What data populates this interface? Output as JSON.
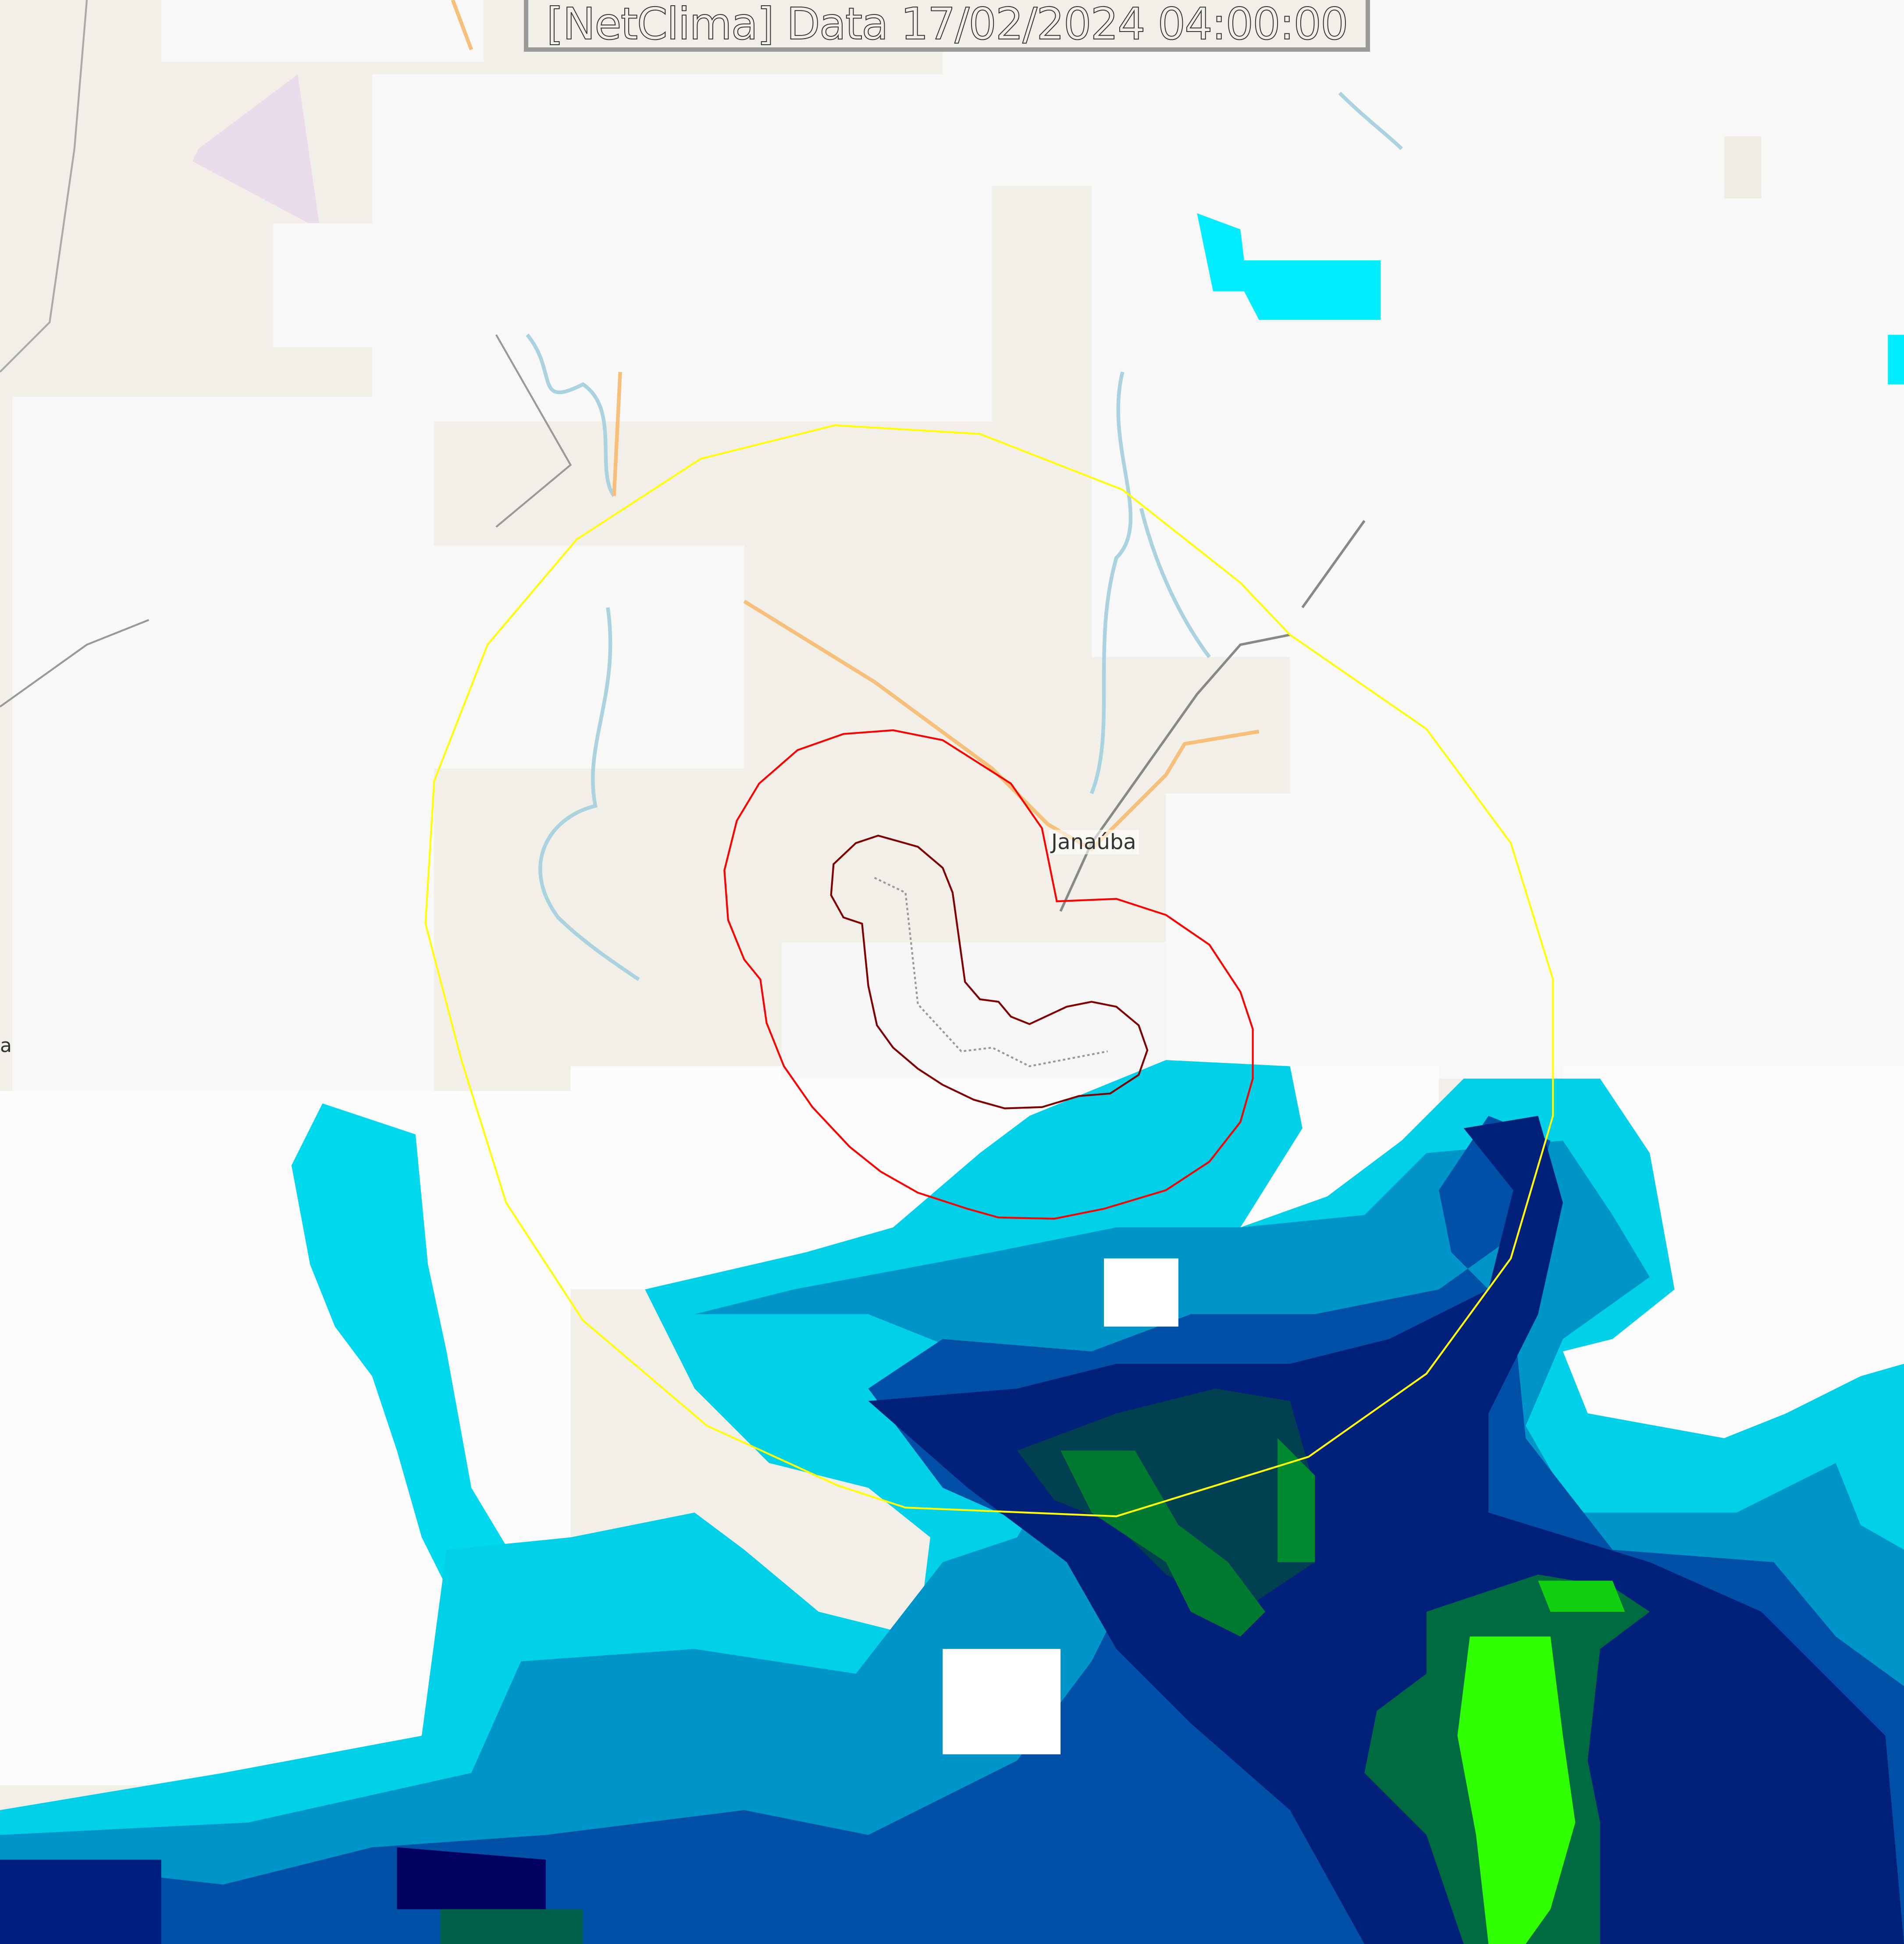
{
  "title": "[NetClima] Data 17/02/2024 04:00:00",
  "map": {
    "city_label": "Janaúba",
    "edge_label": "a",
    "colors": {
      "land": "#f2efe9",
      "cloud": "#f7f7f7",
      "range_ring_outer": "#ffff00",
      "range_ring_mid": "#ff0000",
      "range_ring_inner": "#800000",
      "river": "#aad3df",
      "road_primary": "#f6c07a",
      "radar_levels": [
        "#00ffff",
        "#00d0e8",
        "#0095c8",
        "#0060b0",
        "#002a90",
        "#000060",
        "#003a50",
        "#006a30",
        "#00a030",
        "#20ff00"
      ]
    }
  }
}
